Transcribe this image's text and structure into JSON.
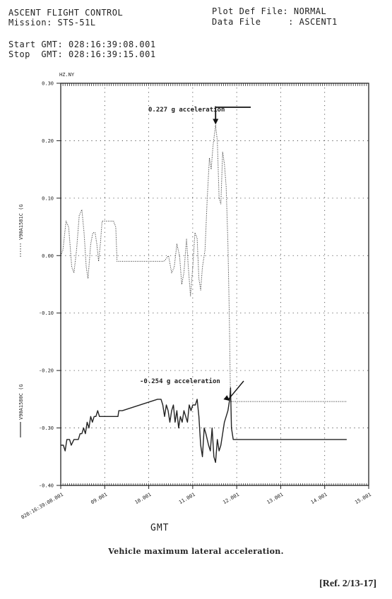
{
  "header": {
    "title": "ASCENT FLIGHT CONTROL",
    "mission_label": "Mission:",
    "mission": "STS-51L",
    "start_label": "Start GMT:",
    "start": "028:16:39:08.001",
    "stop_label": "Stop  GMT:",
    "stop": "028:16:39:15.001",
    "plot_def_label": "Plot Def File:",
    "plot_def": "NORMAL",
    "data_file_label": "Data File     :",
    "data_file": "ASCENT1"
  },
  "chart_data": {
    "type": "line",
    "title": "",
    "corner_label": "HZ.NY",
    "xlabel": "GMT",
    "x_ticks": [
      "028:16:39:08.001",
      "09.001",
      "10.001",
      "11.001",
      "12.001",
      "13.001",
      "14.001",
      "15.001"
    ],
    "xlim": [
      8,
      15
    ],
    "y_ticks": [
      "0.30",
      "0.20",
      "0.10",
      "0.00",
      "-0.10",
      "-0.20",
      "-0.30",
      "-0.40"
    ],
    "ylim": [
      -0.4,
      0.3
    ],
    "grid": true,
    "series": [
      {
        "name": "V90A1581C (G",
        "style": "dotted",
        "points": [
          [
            8.0,
            0.0
          ],
          [
            8.05,
            0.01
          ],
          [
            8.12,
            0.06
          ],
          [
            8.18,
            0.05
          ],
          [
            8.25,
            -0.02
          ],
          [
            8.3,
            -0.03
          ],
          [
            8.36,
            0.01
          ],
          [
            8.42,
            0.07
          ],
          [
            8.48,
            0.08
          ],
          [
            8.53,
            0.04
          ],
          [
            8.58,
            -0.02
          ],
          [
            8.62,
            -0.04
          ],
          [
            8.68,
            0.02
          ],
          [
            8.73,
            0.04
          ],
          [
            8.78,
            0.04
          ],
          [
            8.82,
            0.02
          ],
          [
            8.86,
            -0.01
          ],
          [
            8.9,
            0.02
          ],
          [
            8.94,
            0.06
          ],
          [
            9.0,
            0.06
          ],
          [
            9.2,
            0.06
          ],
          [
            9.25,
            0.05
          ],
          [
            9.28,
            -0.01
          ],
          [
            9.3,
            -0.01
          ],
          [
            9.6,
            -0.01
          ],
          [
            10.0,
            -0.01
          ],
          [
            10.35,
            -0.01
          ],
          [
            10.45,
            0.0
          ],
          [
            10.52,
            -0.03
          ],
          [
            10.58,
            -0.02
          ],
          [
            10.64,
            0.02
          ],
          [
            10.7,
            0.0
          ],
          [
            10.75,
            -0.05
          ],
          [
            10.8,
            -0.03
          ],
          [
            10.86,
            0.03
          ],
          [
            10.9,
            -0.02
          ],
          [
            10.95,
            -0.07
          ],
          [
            11.0,
            -0.02
          ],
          [
            11.05,
            0.04
          ],
          [
            11.1,
            0.03
          ],
          [
            11.14,
            -0.04
          ],
          [
            11.18,
            -0.06
          ],
          [
            11.22,
            -0.02
          ],
          [
            11.28,
            0.01
          ],
          [
            11.33,
            0.1
          ],
          [
            11.38,
            0.17
          ],
          [
            11.42,
            0.15
          ],
          [
            11.46,
            0.19
          ],
          [
            11.52,
            0.227
          ],
          [
            11.56,
            0.2
          ],
          [
            11.6,
            0.1
          ],
          [
            11.64,
            0.09
          ],
          [
            11.68,
            0.18
          ],
          [
            11.72,
            0.16
          ],
          [
            11.76,
            0.12
          ],
          [
            11.8,
            0.02
          ],
          [
            11.83,
            -0.1
          ],
          [
            11.86,
            -0.254
          ],
          [
            12.0,
            -0.254
          ],
          [
            12.5,
            -0.254
          ],
          [
            13.0,
            -0.254
          ],
          [
            13.5,
            -0.254
          ],
          [
            14.5,
            -0.254
          ]
        ]
      },
      {
        "name": "V90A1580C (G",
        "style": "solid",
        "points": [
          [
            8.0,
            -0.33
          ],
          [
            8.06,
            -0.33
          ],
          [
            8.1,
            -0.34
          ],
          [
            8.14,
            -0.32
          ],
          [
            8.2,
            -0.32
          ],
          [
            8.24,
            -0.33
          ],
          [
            8.3,
            -0.32
          ],
          [
            8.4,
            -0.32
          ],
          [
            8.44,
            -0.31
          ],
          [
            8.48,
            -0.31
          ],
          [
            8.52,
            -0.3
          ],
          [
            8.56,
            -0.31
          ],
          [
            8.6,
            -0.29
          ],
          [
            8.64,
            -0.3
          ],
          [
            8.68,
            -0.28
          ],
          [
            8.72,
            -0.29
          ],
          [
            8.76,
            -0.28
          ],
          [
            8.8,
            -0.28
          ],
          [
            8.84,
            -0.27
          ],
          [
            8.88,
            -0.28
          ],
          [
            9.0,
            -0.28
          ],
          [
            9.2,
            -0.28
          ],
          [
            9.3,
            -0.28
          ],
          [
            9.32,
            -0.27
          ],
          [
            9.4,
            -0.27
          ],
          [
            10.0,
            -0.255
          ],
          [
            10.2,
            -0.25
          ],
          [
            10.28,
            -0.25
          ],
          [
            10.32,
            -0.26
          ],
          [
            10.36,
            -0.28
          ],
          [
            10.4,
            -0.26
          ],
          [
            10.44,
            -0.27
          ],
          [
            10.48,
            -0.29
          ],
          [
            10.52,
            -0.27
          ],
          [
            10.56,
            -0.26
          ],
          [
            10.6,
            -0.29
          ],
          [
            10.64,
            -0.27
          ],
          [
            10.68,
            -0.3
          ],
          [
            10.72,
            -0.28
          ],
          [
            10.76,
            -0.29
          ],
          [
            10.8,
            -0.27
          ],
          [
            10.84,
            -0.28
          ],
          [
            10.88,
            -0.29
          ],
          [
            10.92,
            -0.26
          ],
          [
            10.96,
            -0.27
          ],
          [
            11.0,
            -0.26
          ],
          [
            11.06,
            -0.26
          ],
          [
            11.1,
            -0.25
          ],
          [
            11.14,
            -0.28
          ],
          [
            11.18,
            -0.33
          ],
          [
            11.22,
            -0.35
          ],
          [
            11.26,
            -0.3
          ],
          [
            11.3,
            -0.31
          ],
          [
            11.36,
            -0.33
          ],
          [
            11.4,
            -0.34
          ],
          [
            11.44,
            -0.3
          ],
          [
            11.48,
            -0.35
          ],
          [
            11.52,
            -0.36
          ],
          [
            11.56,
            -0.32
          ],
          [
            11.6,
            -0.34
          ],
          [
            11.64,
            -0.33
          ],
          [
            11.68,
            -0.31
          ],
          [
            11.72,
            -0.29
          ],
          [
            11.76,
            -0.28
          ],
          [
            11.8,
            -0.27
          ],
          [
            11.84,
            -0.25
          ],
          [
            11.86,
            -0.23
          ],
          [
            11.88,
            -0.3
          ],
          [
            11.92,
            -0.32
          ],
          [
            12.0,
            -0.32
          ],
          [
            12.5,
            -0.32
          ],
          [
            13.0,
            -0.32
          ],
          [
            13.5,
            -0.32
          ],
          [
            14.5,
            -0.32
          ]
        ]
      }
    ],
    "annotations": [
      {
        "text": "0.227 g acceleration",
        "x": 11.52,
        "y": 0.227
      },
      {
        "text": "-0.254 g acceleration",
        "x": 11.86,
        "y": -0.254
      }
    ]
  },
  "caption": "Vehicle maximum lateral acceleration.",
  "reference": "[Ref. 2/13-17]"
}
